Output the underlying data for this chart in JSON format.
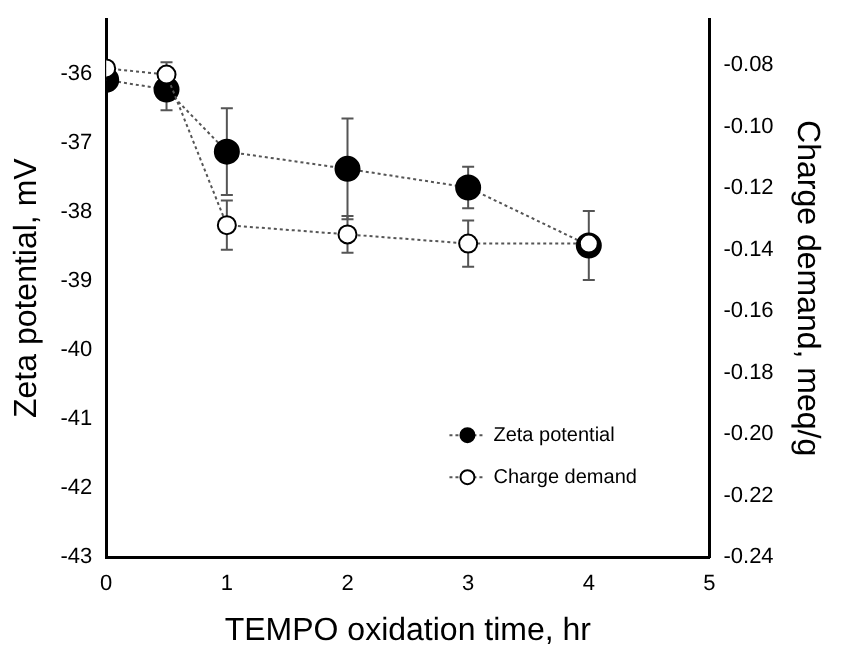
{
  "chart_data": {
    "type": "line",
    "xlabel": "TEMPO oxidation time, hr",
    "ylabel": "Zeta potential, mV",
    "y2label": "Charge demand, meq/g",
    "x": [
      0,
      0.5,
      1,
      2,
      3,
      4
    ],
    "series": [
      {
        "name": "Zeta potential",
        "color": "#000000",
        "values": [
          -36.08,
          -36.22,
          -37.12,
          -37.37,
          -37.64,
          -38.48
        ],
        "errors": [
          null,
          0.3,
          0.63,
          0.73,
          0.3,
          0.5
        ]
      },
      {
        "name": "Charge demand",
        "color": "#ffffff",
        "axis": "y2",
        "values": [
          -0.081,
          -0.083,
          -0.132,
          -0.135,
          -0.138,
          -0.138
        ],
        "errors": [
          null,
          0.004,
          0.008,
          0.006,
          0.0075,
          null
        ]
      }
    ],
    "xlim": [
      0,
      5
    ],
    "xticks": [
      0,
      1,
      2,
      3,
      4,
      5
    ],
    "ylim": [
      -43,
      -35.2
    ],
    "yticks": [
      -43,
      -42,
      -41,
      -40,
      -39,
      -38,
      -37,
      -36
    ],
    "y2lim": [
      -0.24,
      -0.065
    ],
    "y2ticks": [
      {
        "value": -0.24,
        "label": "-0.24"
      },
      {
        "value": -0.22,
        "label": "-0.22"
      },
      {
        "value": -0.2,
        "label": "-0.20"
      },
      {
        "value": -0.18,
        "label": "-0.18"
      },
      {
        "value": -0.16,
        "label": "-0.16"
      },
      {
        "value": -0.14,
        "label": "-0.14"
      },
      {
        "value": -0.12,
        "label": "-0.12"
      },
      {
        "value": -0.1,
        "label": "-0.10"
      },
      {
        "value": -0.08,
        "label": "-0.08"
      }
    ],
    "grid": false,
    "legend": "bottom right",
    "marker": "circle",
    "line_style": "dotted"
  }
}
